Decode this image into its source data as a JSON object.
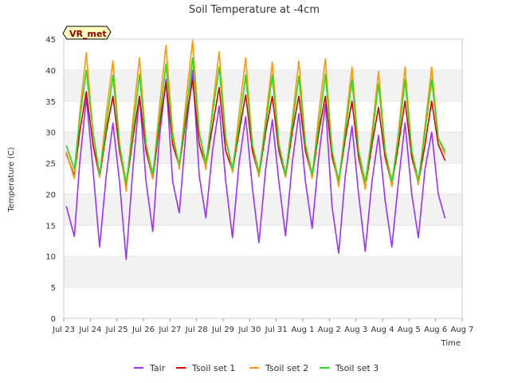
{
  "chart_data": {
    "type": "line",
    "title": "Soil Temperature at -4cm",
    "xlabel": "Time",
    "ylabel": "Temperature (C)",
    "badge": "VR_met",
    "xlim": [
      0,
      15
    ],
    "ylim": [
      0,
      45
    ],
    "yticks": [
      0,
      5,
      10,
      15,
      20,
      25,
      30,
      35,
      40,
      45
    ],
    "xticks": [
      {
        "x": 0,
        "label": "Jul 23"
      },
      {
        "x": 1,
        "label": "Jul 24"
      },
      {
        "x": 2,
        "label": "Jul 25"
      },
      {
        "x": 3,
        "label": "Jul 26"
      },
      {
        "x": 4,
        "label": "Jul 27"
      },
      {
        "x": 5,
        "label": "Jul 28"
      },
      {
        "x": 6,
        "label": "Jul 29"
      },
      {
        "x": 7,
        "label": "Jul 30"
      },
      {
        "x": 8,
        "label": "Jul 31"
      },
      {
        "x": 9,
        "label": "Aug 1"
      },
      {
        "x": 10,
        "label": "Aug 2"
      },
      {
        "x": 11,
        "label": "Aug 3"
      },
      {
        "x": 12,
        "label": "Aug 4"
      },
      {
        "x": 13,
        "label": "Aug 5"
      },
      {
        "x": 14,
        "label": "Aug 6"
      },
      {
        "x": 15,
        "label": "Aug 7"
      }
    ],
    "grid": "horizontal bands",
    "legend": "bottom",
    "series": [
      {
        "name": "Tair",
        "color": "#9b30ff",
        "x": [
          0.1,
          0.4,
          0.6,
          0.85,
          1.1,
          1.35,
          1.6,
          1.85,
          2.1,
          2.35,
          2.6,
          2.85,
          3.1,
          3.35,
          3.6,
          3.85,
          4.1,
          4.35,
          4.6,
          4.85,
          5.1,
          5.35,
          5.6,
          5.85,
          6.1,
          6.35,
          6.6,
          6.85,
          7.1,
          7.35,
          7.6,
          7.85,
          8.1,
          8.35,
          8.6,
          8.85,
          9.1,
          9.35,
          9.6,
          9.85,
          10.1,
          10.35,
          10.6,
          10.85,
          11.1,
          11.35,
          11.6,
          11.85,
          12.1,
          12.35,
          12.6,
          12.85,
          13.1,
          13.35,
          13.6,
          13.85,
          14.1,
          14.35
        ],
        "y": [
          18,
          13.2,
          25,
          35.5,
          24,
          11.5,
          23,
          31.5,
          22,
          9.5,
          24,
          35.8,
          22,
          14,
          29,
          38.5,
          22,
          17,
          30,
          40,
          23,
          16.2,
          27,
          34.2,
          22,
          13,
          25,
          32.5,
          21,
          12.2,
          24,
          32,
          22,
          13.3,
          25,
          33,
          22,
          14.5,
          26,
          34.5,
          18,
          10.5,
          23,
          31,
          20,
          10.8,
          22,
          29.5,
          19,
          11.5,
          22,
          31.5,
          20,
          13,
          24,
          30,
          20,
          16.2
        ]
      },
      {
        "name": "Tsoil set 1",
        "color": "#e00000",
        "x": [
          0.1,
          0.4,
          0.6,
          0.85,
          1.1,
          1.35,
          1.6,
          1.85,
          2.1,
          2.35,
          2.6,
          2.85,
          3.1,
          3.35,
          3.6,
          3.85,
          4.1,
          4.35,
          4.6,
          4.85,
          5.1,
          5.35,
          5.6,
          5.85,
          6.1,
          6.35,
          6.6,
          6.85,
          7.1,
          7.35,
          7.6,
          7.85,
          8.1,
          8.35,
          8.6,
          8.85,
          9.1,
          9.35,
          9.6,
          9.85,
          10.1,
          10.35,
          10.6,
          10.85,
          11.1,
          11.35,
          11.6,
          11.85,
          12.1,
          12.35,
          12.6,
          12.85,
          13.1,
          13.35,
          13.6,
          13.85,
          14.1,
          14.35
        ],
        "y": [
          26.5,
          23,
          30,
          36.5,
          28,
          22.8,
          30,
          35.8,
          27,
          21.2,
          29,
          35.8,
          27,
          22.5,
          31,
          38,
          28,
          24.5,
          32,
          38.5,
          28,
          24.5,
          31,
          37.2,
          27,
          23.8,
          30,
          36,
          27,
          23,
          30,
          35.8,
          27,
          22.8,
          30,
          35.8,
          27,
          22.8,
          30,
          35.8,
          26,
          21.8,
          29,
          35,
          26,
          21,
          28,
          34,
          26,
          21.5,
          28,
          35,
          26,
          21.8,
          28,
          35,
          28,
          25.5
        ]
      },
      {
        "name": "Tsoil set 2",
        "color": "#ff9900",
        "x": [
          0.1,
          0.4,
          0.6,
          0.85,
          1.1,
          1.35,
          1.6,
          1.85,
          2.1,
          2.35,
          2.6,
          2.85,
          3.1,
          3.35,
          3.6,
          3.85,
          4.1,
          4.35,
          4.6,
          4.85,
          5.1,
          5.35,
          5.6,
          5.85,
          6.1,
          6.35,
          6.6,
          6.85,
          7.1,
          7.35,
          7.6,
          7.85,
          8.1,
          8.35,
          8.6,
          8.85,
          9.1,
          9.35,
          9.6,
          9.85,
          10.1,
          10.35,
          10.6,
          10.85,
          11.1,
          11.35,
          11.6,
          11.85,
          12.1,
          12.35,
          12.6,
          12.85,
          13.1,
          13.35,
          13.6,
          13.85,
          14.1,
          14.35
        ],
        "y": [
          26.8,
          22.5,
          33,
          42.8,
          30,
          22.8,
          33,
          41.5,
          28,
          20.5,
          32,
          42,
          28,
          22.5,
          34,
          44,
          30,
          24,
          35,
          44.8,
          30,
          24,
          34,
          43,
          29,
          23.5,
          33,
          42,
          28,
          22.8,
          32,
          41.3,
          28,
          22.8,
          32,
          41.5,
          28,
          22.5,
          33,
          41.8,
          27,
          21.2,
          31,
          40.5,
          27,
          20.8,
          30,
          39.8,
          27,
          21.2,
          30,
          40.5,
          27,
          21.5,
          31,
          40.5,
          29,
          26.5
        ]
      },
      {
        "name": "Tsoil set 3",
        "color": "#22dd22",
        "x": [
          0.1,
          0.4,
          0.6,
          0.85,
          1.1,
          1.35,
          1.6,
          1.85,
          2.1,
          2.35,
          2.6,
          2.85,
          3.1,
          3.35,
          3.6,
          3.85,
          4.1,
          4.35,
          4.6,
          4.85,
          5.1,
          5.35,
          5.6,
          5.85,
          6.1,
          6.35,
          6.6,
          6.85,
          7.1,
          7.35,
          7.6,
          7.85,
          8.1,
          8.35,
          8.6,
          8.85,
          9.1,
          9.35,
          9.6,
          9.85,
          10.1,
          10.35,
          10.6,
          10.85,
          11.1,
          11.35,
          11.6,
          11.85,
          12.1,
          12.35,
          12.6,
          12.85,
          13.1,
          13.35,
          13.6,
          13.85,
          14.1,
          14.35
        ],
        "y": [
          27.8,
          24,
          32,
          40,
          30,
          23.2,
          31,
          39.2,
          28,
          21.8,
          30,
          39.3,
          28,
          23.2,
          32,
          41,
          29,
          24.8,
          33,
          42,
          30,
          25,
          33,
          40.5,
          29,
          24,
          31,
          39.2,
          28,
          23.5,
          31,
          39.2,
          28,
          23.2,
          31,
          39,
          28,
          23.2,
          31,
          39.3,
          27,
          22.2,
          30,
          38.5,
          27,
          22,
          29,
          37.8,
          27,
          22,
          29,
          38.5,
          27,
          22.2,
          30,
          38.5,
          29,
          27
        ]
      }
    ]
  }
}
